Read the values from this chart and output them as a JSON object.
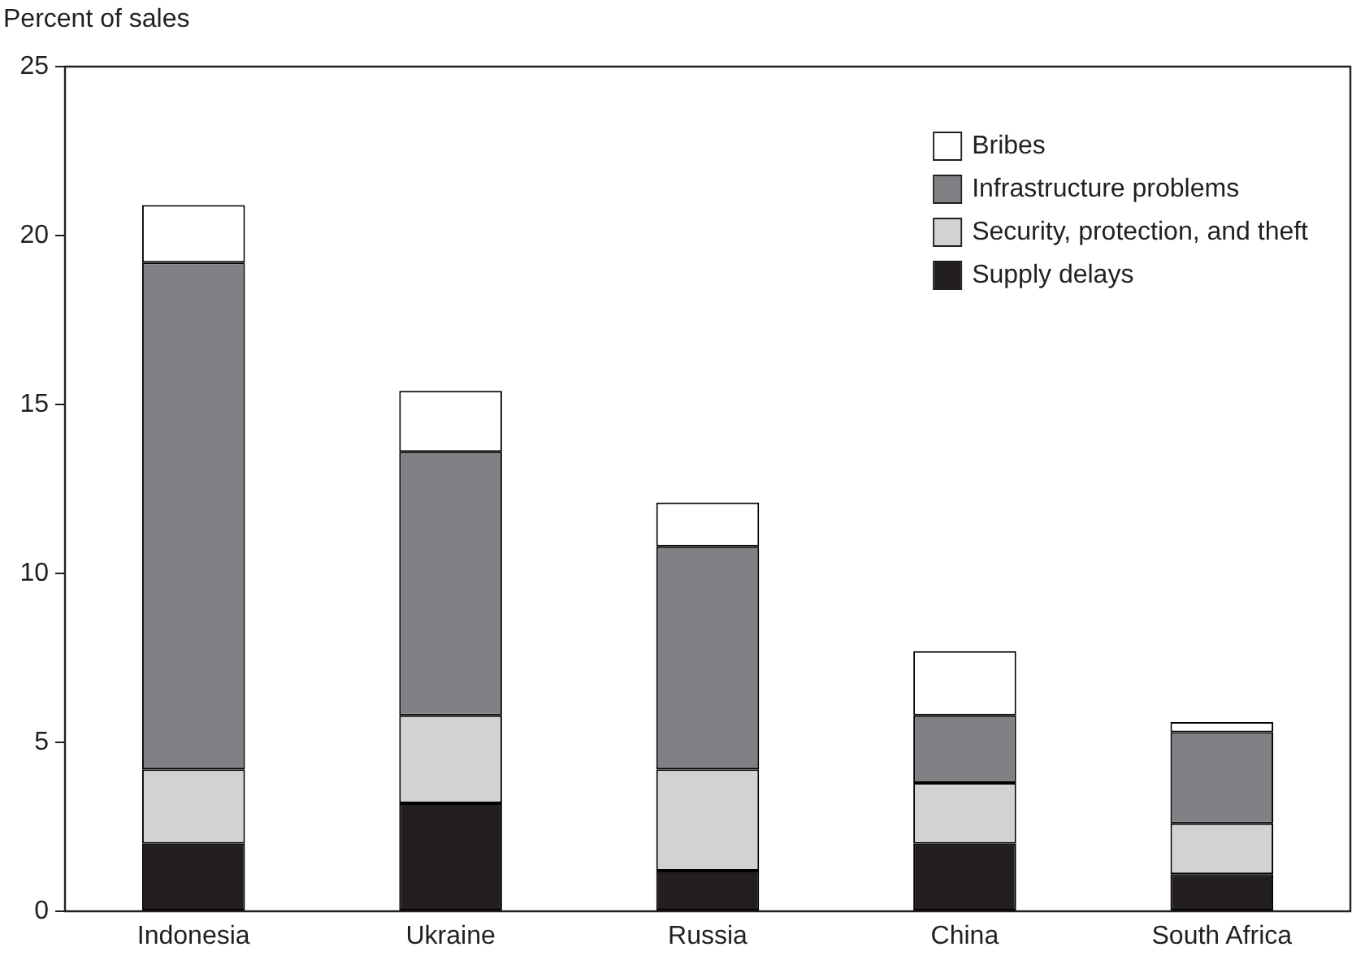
{
  "chart_data": {
    "type": "bar",
    "ylabel": "Percent of sales",
    "categories": [
      "Indonesia",
      "Ukraine",
      "Russia",
      "China",
      "South Africa"
    ],
    "series": [
      {
        "name": "Supply delays",
        "color": "#231f20",
        "values": [
          2.0,
          3.2,
          1.2,
          2.0,
          1.1
        ]
      },
      {
        "name": "Security, protection, and theft",
        "color": "#d1d2d4",
        "values": [
          2.2,
          2.6,
          3.0,
          1.8,
          1.5
        ]
      },
      {
        "name": "Infrastructure problems",
        "color": "#808185",
        "values": [
          15.0,
          7.8,
          6.6,
          2.0,
          2.7
        ]
      },
      {
        "name": "Bribes",
        "color": "#ffffff",
        "values": [
          1.7,
          1.8,
          1.3,
          1.9,
          0.3
        ]
      }
    ],
    "stacked": true,
    "ylim": [
      0,
      25
    ],
    "yticks": [
      0,
      5,
      10,
      15,
      20,
      25
    ],
    "grid": false,
    "legend": "top right"
  }
}
